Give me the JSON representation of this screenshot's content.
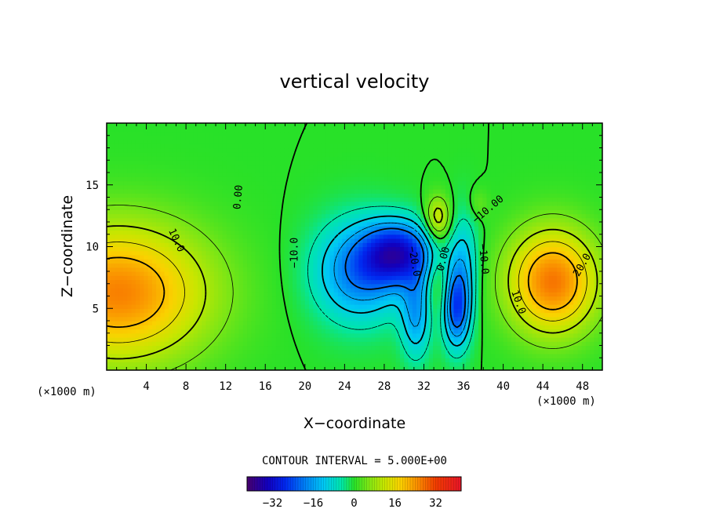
{
  "chart_data": {
    "type": "heatmap",
    "title": "vertical velocity",
    "xlabel": "X−coordinate",
    "ylabel": "Z−coordinate",
    "x_unit": "(×1000 m)",
    "y_unit": "(×1000 m)",
    "xlim": [
      0,
      50
    ],
    "ylim": [
      0,
      20
    ],
    "x_ticks": [
      4,
      8,
      12,
      16,
      20,
      24,
      28,
      32,
      36,
      40,
      44,
      48
    ],
    "y_ticks": [
      5,
      10,
      15
    ],
    "x_tick_labels": [
      "4",
      "8",
      "12",
      "16",
      "20",
      "24",
      "28",
      "32",
      "36",
      "40",
      "44",
      "48"
    ],
    "y_tick_labels": [
      "5",
      "10",
      "15"
    ],
    "contour_interval_text": "CONTOUR INTERVAL = 5.000E+00",
    "contour_interval": 5,
    "colorbar": {
      "range": [
        -42,
        42
      ],
      "ticks": [
        -32,
        -16,
        0,
        16,
        32
      ],
      "tick_labels": [
        "−32",
        "−16",
        "0",
        "16",
        "32"
      ]
    },
    "features": [
      {
        "x": 1.2,
        "z": 6.3,
        "w": 26,
        "rx": 9,
        "rz": 5.5
      },
      {
        "x": 45.0,
        "z": 7.2,
        "w": 27,
        "rx": 4.5,
        "rz": 4.2
      },
      {
        "x": 29.5,
        "z": 9.5,
        "w": -28,
        "rx": 3.5,
        "rz": 2.5
      },
      {
        "x": 25.5,
        "z": 8.0,
        "w": -20,
        "rx": 4.5,
        "rz": 4.0
      },
      {
        "x": 35.3,
        "z": 5.0,
        "w": -24,
        "rx": 1.4,
        "rz": 3.2
      },
      {
        "x": 31.2,
        "z": 4.5,
        "w": -15,
        "rx": 1.5,
        "rz": 3.5
      },
      {
        "x": 33.4,
        "z": 12.3,
        "w": 14,
        "rx": 1.3,
        "rz": 1.8
      },
      {
        "x": 33.5,
        "z": 7.0,
        "w": 6,
        "rx": 1.2,
        "rz": 3.0
      },
      {
        "x": 36.0,
        "z": 9.0,
        "w": -10,
        "rx": 1.5,
        "rz": 4.0
      },
      {
        "x": 37.5,
        "z": 13.5,
        "w": 4,
        "rx": 1.0,
        "rz": 1.2
      }
    ],
    "contour_labels": [
      {
        "text": "0.00",
        "x": 13.3,
        "z": 14.0,
        "angle": -85
      },
      {
        "text": "10.0",
        "x": 7.0,
        "z": 10.5,
        "angle": 65
      },
      {
        "text": "−10.0",
        "x": 19.0,
        "z": 9.5,
        "angle": -90
      },
      {
        "text": "−20.0",
        "x": 31.0,
        "z": 8.8,
        "angle": 80
      },
      {
        "text": "0.00",
        "x": 34.0,
        "z": 9.0,
        "angle": -75
      },
      {
        "text": "−10.0",
        "x": 38.0,
        "z": 9.0,
        "angle": 85
      },
      {
        "text": "−10.00",
        "x": 38.5,
        "z": 13.0,
        "angle": -40
      },
      {
        "text": "10.0",
        "x": 41.5,
        "z": 5.5,
        "angle": 70
      },
      {
        "text": "20.0",
        "x": 48.0,
        "z": 8.5,
        "angle": -60
      }
    ]
  }
}
